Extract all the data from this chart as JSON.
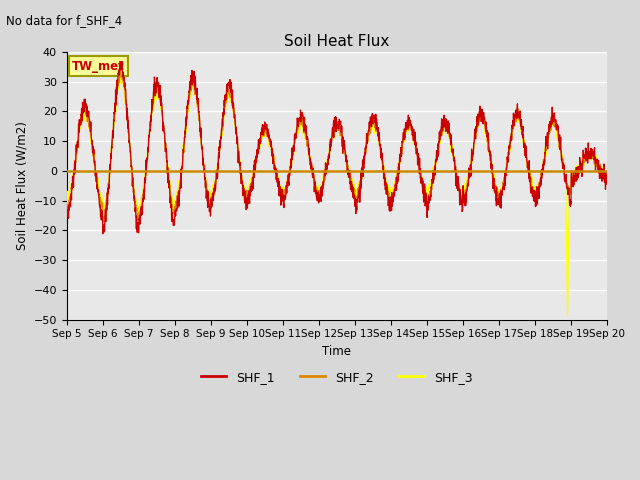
{
  "title": "Soil Heat Flux",
  "subtitle": "No data for f_SHF_4",
  "ylabel": "Soil Heat Flux (W/m2)",
  "xlabel": "Time",
  "ylim": [
    -50,
    40
  ],
  "yticks": [
    -50,
    -40,
    -30,
    -20,
    -10,
    0,
    10,
    20,
    30,
    40
  ],
  "background_color": "#e8e8e8",
  "line_colors": [
    "#cc0000",
    "#dd8800",
    "#ffff00"
  ],
  "line_labels": [
    "SHF_1",
    "SHF_2",
    "SHF_3"
  ],
  "annotation_text": "TW_met",
  "annotation_bg": "#ffff99",
  "annotation_border": "#999900",
  "zero_line_color": "#cc8800",
  "fig_width": 6.4,
  "fig_height": 4.8,
  "dpi": 100
}
